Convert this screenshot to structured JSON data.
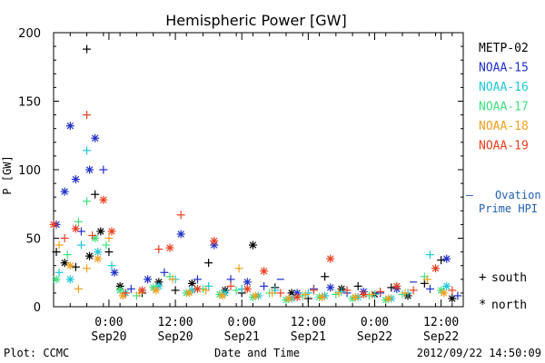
{
  "chart_data": {
    "type": "scatter",
    "title": "Hemispheric Power [GW]",
    "ylabel": "P [GW]",
    "xlabel": "Date and Time",
    "ylim": [
      0,
      200
    ],
    "xlim": [
      "2012-09-19T14:00",
      "2012-09-22T16:00"
    ],
    "yticks": [
      0,
      50,
      100,
      150,
      200
    ],
    "xticks": [
      {
        "line1": "0:00",
        "line2": "Sep20",
        "t": "2012-09-20T00:00"
      },
      {
        "line1": "12:00",
        "line2": "Sep20",
        "t": "2012-09-20T12:00"
      },
      {
        "line1": "0:00",
        "line2": "Sep21",
        "t": "2012-09-21T00:00"
      },
      {
        "line1": "12:00",
        "line2": "Sep21",
        "t": "2012-09-21T12:00"
      },
      {
        "line1": "0:00",
        "line2": "Sep22",
        "t": "2012-09-22T00:00"
      },
      {
        "line1": "12:00",
        "line2": "Sep22",
        "t": "2012-09-22T12:00"
      }
    ],
    "legend": {
      "placement": "right",
      "satellites": [
        {
          "name": "METP-02",
          "color": "#000000"
        },
        {
          "name": "NOAA-15",
          "color": "#1f2fc8"
        },
        {
          "name": "NOAA-16",
          "color": "#1fc8d8"
        },
        {
          "name": "NOAA-17",
          "color": "#3fe07f"
        },
        {
          "name": "NOAA-18",
          "color": "#f0a020"
        },
        {
          "name": "NOAA-19",
          "color": "#e8401f"
        }
      ],
      "ovation": {
        "dash": "–",
        "line1": "Ovation",
        "line2": "Prime HPI",
        "color": "#1f5fb0"
      },
      "markers": [
        {
          "symbol": "+",
          "label": "south"
        },
        {
          "symbol": "*",
          "label": "north"
        }
      ]
    },
    "series": [
      {
        "name": "METP-02",
        "color": "#000000",
        "points": [
          [
            "2012-09-19T14:30",
            40,
            "+"
          ],
          [
            "2012-09-19T16:00",
            32,
            "*"
          ],
          [
            "2012-09-19T18:00",
            29,
            "+"
          ],
          [
            "2012-09-19T20:00",
            188,
            "+"
          ],
          [
            "2012-09-19T20:30",
            37,
            "*"
          ],
          [
            "2012-09-19T21:30",
            82,
            "+"
          ],
          [
            "2012-09-19T22:30",
            55,
            "*"
          ],
          [
            "2012-09-20T00:00",
            40,
            "+"
          ],
          [
            "2012-09-20T02:00",
            15,
            "*"
          ],
          [
            "2012-09-20T06:00",
            10,
            "+"
          ],
          [
            "2012-09-20T09:00",
            18,
            "*"
          ],
          [
            "2012-09-20T12:00",
            12,
            "+"
          ],
          [
            "2012-09-20T15:00",
            17,
            "*"
          ],
          [
            "2012-09-20T18:00",
            32,
            "+"
          ],
          [
            "2012-09-20T21:00",
            12,
            "*"
          ],
          [
            "2012-09-21T00:00",
            10,
            "+"
          ],
          [
            "2012-09-21T02:00",
            45,
            "*"
          ],
          [
            "2012-09-21T06:00",
            14,
            "+"
          ],
          [
            "2012-09-21T09:00",
            10,
            "*"
          ],
          [
            "2012-09-21T12:00",
            6,
            "+"
          ],
          [
            "2012-09-21T15:00",
            22,
            "+"
          ],
          [
            "2012-09-21T18:00",
            13,
            "*"
          ],
          [
            "2012-09-21T21:00",
            15,
            "+"
          ],
          [
            "2012-09-22T00:00",
            9,
            "*"
          ],
          [
            "2012-09-22T03:00",
            14,
            "+"
          ],
          [
            "2012-09-22T06:00",
            8,
            "*"
          ],
          [
            "2012-09-22T09:00",
            17,
            "+"
          ],
          [
            "2012-09-22T12:00",
            34,
            "+"
          ],
          [
            "2012-09-22T14:00",
            6,
            "*"
          ]
        ]
      },
      {
        "name": "NOAA-15",
        "color": "#1f2fc8",
        "points": [
          [
            "2012-09-19T14:30",
            60,
            "*"
          ],
          [
            "2012-09-19T16:00",
            84,
            "*"
          ],
          [
            "2012-09-19T17:00",
            132,
            "*"
          ],
          [
            "2012-09-19T18:00",
            93,
            "*"
          ],
          [
            "2012-09-19T19:00",
            55,
            "+"
          ],
          [
            "2012-09-19T20:30",
            100,
            "*"
          ],
          [
            "2012-09-19T21:30",
            123,
            "*"
          ],
          [
            "2012-09-19T23:00",
            100,
            "+"
          ],
          [
            "2012-09-20T01:00",
            25,
            "*"
          ],
          [
            "2012-09-20T04:00",
            13,
            "+"
          ],
          [
            "2012-09-20T07:00",
            20,
            "*"
          ],
          [
            "2012-09-20T10:00",
            25,
            "+"
          ],
          [
            "2012-09-20T13:00",
            53,
            "*"
          ],
          [
            "2012-09-20T16:00",
            20,
            "+"
          ],
          [
            "2012-09-20T19:00",
            45,
            "*"
          ],
          [
            "2012-09-20T22:00",
            20,
            "+"
          ],
          [
            "2012-09-21T01:00",
            18,
            "*"
          ],
          [
            "2012-09-21T04:00",
            15,
            "+"
          ],
          [
            "2012-09-21T07:00",
            20,
            "-"
          ],
          [
            "2012-09-21T10:00",
            10,
            "*"
          ],
          [
            "2012-09-21T13:00",
            13,
            "+"
          ],
          [
            "2012-09-21T16:00",
            14,
            "*"
          ],
          [
            "2012-09-21T19:00",
            10,
            "+"
          ],
          [
            "2012-09-21T22:00",
            11,
            "*"
          ],
          [
            "2012-09-22T01:00",
            10,
            "+"
          ],
          [
            "2012-09-22T04:00",
            13,
            "*"
          ],
          [
            "2012-09-22T07:00",
            18,
            "-"
          ],
          [
            "2012-09-22T10:00",
            13,
            "+"
          ],
          [
            "2012-09-22T13:00",
            35,
            "*"
          ],
          [
            "2012-09-22T15:00",
            8,
            "+"
          ]
        ]
      },
      {
        "name": "NOAA-16",
        "color": "#1fc8d8",
        "points": [
          [
            "2012-09-19T15:00",
            25,
            "+"
          ],
          [
            "2012-09-19T17:00",
            20,
            "*"
          ],
          [
            "2012-09-19T19:00",
            45,
            "+"
          ],
          [
            "2012-09-19T20:00",
            114,
            "+"
          ],
          [
            "2012-09-19T22:00",
            40,
            "*"
          ],
          [
            "2012-09-20T00:30",
            30,
            "+"
          ],
          [
            "2012-09-20T03:00",
            10,
            "*"
          ],
          [
            "2012-09-20T06:00",
            12,
            "+"
          ],
          [
            "2012-09-20T09:00",
            15,
            "*"
          ],
          [
            "2012-09-20T12:00",
            20,
            "+"
          ],
          [
            "2012-09-20T15:00",
            12,
            "*"
          ],
          [
            "2012-09-20T18:00",
            15,
            "+"
          ],
          [
            "2012-09-20T21:00",
            10,
            "*"
          ],
          [
            "2012-09-21T00:00",
            13,
            "+"
          ],
          [
            "2012-09-21T03:00",
            8,
            "*"
          ],
          [
            "2012-09-21T06:00",
            12,
            "+"
          ],
          [
            "2012-09-21T09:00",
            6,
            "*"
          ],
          [
            "2012-09-21T12:00",
            10,
            "+"
          ],
          [
            "2012-09-21T15:00",
            8,
            "*"
          ],
          [
            "2012-09-21T18:00",
            11,
            "+"
          ],
          [
            "2012-09-21T21:00",
            7,
            "*"
          ],
          [
            "2012-09-22T00:00",
            9,
            "+"
          ],
          [
            "2012-09-22T03:00",
            6,
            "*"
          ],
          [
            "2012-09-22T06:00",
            10,
            "+"
          ],
          [
            "2012-09-22T10:00",
            38,
            "+"
          ],
          [
            "2012-09-22T13:00",
            15,
            "*"
          ]
        ]
      },
      {
        "name": "NOAA-17",
        "color": "#3fe07f",
        "points": [
          [
            "2012-09-19T14:30",
            20,
            "*"
          ],
          [
            "2012-09-19T16:30",
            38,
            "+"
          ],
          [
            "2012-09-19T18:30",
            62,
            "+"
          ],
          [
            "2012-09-19T20:00",
            77,
            "+"
          ],
          [
            "2012-09-19T21:30",
            50,
            "*"
          ],
          [
            "2012-09-19T23:30",
            45,
            "+"
          ],
          [
            "2012-09-20T02:00",
            12,
            "*"
          ],
          [
            "2012-09-20T05:00",
            8,
            "+"
          ],
          [
            "2012-09-20T08:00",
            14,
            "*"
          ],
          [
            "2012-09-20T11:00",
            22,
            "+"
          ],
          [
            "2012-09-20T14:00",
            10,
            "*"
          ],
          [
            "2012-09-20T17:00",
            13,
            "+"
          ],
          [
            "2012-09-20T20:00",
            9,
            "*"
          ],
          [
            "2012-09-20T23:00",
            12,
            "+"
          ],
          [
            "2012-09-21T02:00",
            7,
            "*"
          ],
          [
            "2012-09-21T05:00",
            10,
            "+"
          ],
          [
            "2012-09-21T08:00",
            5,
            "*"
          ],
          [
            "2012-09-21T11:00",
            8,
            "+"
          ],
          [
            "2012-09-21T14:00",
            7,
            "*"
          ],
          [
            "2012-09-21T17:00",
            9,
            "+"
          ],
          [
            "2012-09-21T20:00",
            6,
            "*"
          ],
          [
            "2012-09-21T23:00",
            8,
            "+"
          ],
          [
            "2012-09-22T02:00",
            5,
            "*"
          ],
          [
            "2012-09-22T05:00",
            9,
            "+"
          ],
          [
            "2012-09-22T09:00",
            22,
            "+"
          ],
          [
            "2012-09-22T12:00",
            12,
            "*"
          ]
        ]
      },
      {
        "name": "NOAA-18",
        "color": "#f0a020",
        "points": [
          [
            "2012-09-19T15:00",
            45,
            "+"
          ],
          [
            "2012-09-19T17:00",
            30,
            "*"
          ],
          [
            "2012-09-19T18:30",
            13,
            "+"
          ],
          [
            "2012-09-19T20:00",
            28,
            "+"
          ],
          [
            "2012-09-19T22:00",
            35,
            "*"
          ],
          [
            "2012-09-20T00:00",
            50,
            "+"
          ],
          [
            "2012-09-20T02:30",
            8,
            "*"
          ],
          [
            "2012-09-20T05:30",
            10,
            "+"
          ],
          [
            "2012-09-20T08:30",
            12,
            "*"
          ],
          [
            "2012-09-20T11:30",
            20,
            "+"
          ],
          [
            "2012-09-20T14:30",
            10,
            "*"
          ],
          [
            "2012-09-20T17:30",
            12,
            "+"
          ],
          [
            "2012-09-20T20:30",
            8,
            "*"
          ],
          [
            "2012-09-20T23:30",
            28,
            "+"
          ],
          [
            "2012-09-21T02:30",
            8,
            "*"
          ],
          [
            "2012-09-21T05:30",
            10,
            "+"
          ],
          [
            "2012-09-21T08:30",
            6,
            "*"
          ],
          [
            "2012-09-21T11:30",
            9,
            "+"
          ],
          [
            "2012-09-21T14:30",
            7,
            "*"
          ],
          [
            "2012-09-21T17:30",
            10,
            "+"
          ],
          [
            "2012-09-21T20:30",
            7,
            "*"
          ],
          [
            "2012-09-21T23:30",
            9,
            "+"
          ],
          [
            "2012-09-22T02:30",
            6,
            "*"
          ],
          [
            "2012-09-22T05:30",
            10,
            "+"
          ],
          [
            "2012-09-22T09:30",
            20,
            "+"
          ],
          [
            "2012-09-22T12:30",
            10,
            "*"
          ]
        ]
      },
      {
        "name": "NOAA-19",
        "color": "#e8401f",
        "points": [
          [
            "2012-09-19T14:00",
            60,
            "*"
          ],
          [
            "2012-09-19T16:00",
            50,
            "+"
          ],
          [
            "2012-09-19T18:00",
            57,
            "*"
          ],
          [
            "2012-09-19T20:00",
            140,
            "+"
          ],
          [
            "2012-09-19T21:00",
            52,
            "+"
          ],
          [
            "2012-09-19T23:00",
            78,
            "*"
          ],
          [
            "2012-09-20T00:30",
            55,
            "*"
          ],
          [
            "2012-09-20T03:00",
            10,
            "+"
          ],
          [
            "2012-09-20T06:00",
            12,
            "*"
          ],
          [
            "2012-09-20T09:00",
            42,
            "+"
          ],
          [
            "2012-09-20T11:00",
            43,
            "*"
          ],
          [
            "2012-09-20T13:00",
            67,
            "+"
          ],
          [
            "2012-09-20T16:00",
            13,
            "*"
          ],
          [
            "2012-09-20T19:00",
            48,
            "*"
          ],
          [
            "2012-09-20T22:00",
            15,
            "+"
          ],
          [
            "2012-09-21T01:00",
            13,
            "*"
          ],
          [
            "2012-09-21T04:00",
            26,
            "*"
          ],
          [
            "2012-09-21T07:00",
            10,
            "+"
          ],
          [
            "2012-09-21T10:00",
            7,
            "*"
          ],
          [
            "2012-09-21T13:00",
            12,
            "+"
          ],
          [
            "2012-09-21T16:00",
            35,
            "*"
          ],
          [
            "2012-09-21T19:00",
            12,
            "+"
          ],
          [
            "2012-09-21T22:00",
            9,
            "*"
          ],
          [
            "2012-09-22T01:00",
            11,
            "+"
          ],
          [
            "2012-09-22T04:00",
            15,
            "*"
          ],
          [
            "2012-09-22T07:00",
            12,
            "+"
          ],
          [
            "2012-09-22T11:00",
            28,
            "*"
          ],
          [
            "2012-09-22T14:00",
            12,
            "+"
          ]
        ]
      }
    ]
  },
  "footer": {
    "plot_credit": "Plot: CCMC",
    "timestamp": "2012/09/22 14:50:09"
  }
}
